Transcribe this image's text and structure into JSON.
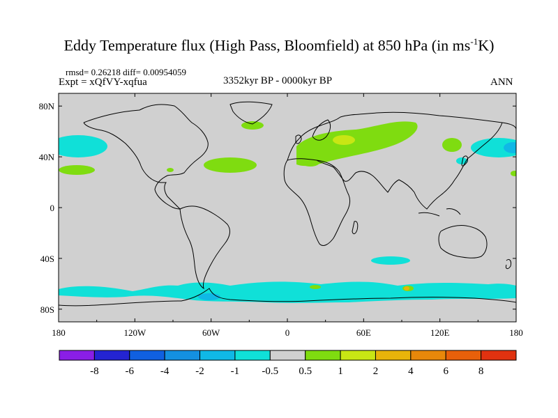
{
  "title": {
    "main": "Eddy Temperature flux (High Pass, Bloomfield) at 850 hPa (in ms",
    "sup": "-1",
    "tail": "K)"
  },
  "stats": "rmsd= 0.26218 diff= 0.00954059",
  "experiment": "Expt = xQfVY-xqfua",
  "period": "3352kyr BP - 0000kyr BP",
  "season": "ANN",
  "x_ticks": [
    "180",
    "120W",
    "60W",
    "0",
    "60E",
    "120E",
    "180"
  ],
  "y_ticks": [
    "80N",
    "40N",
    "0",
    "40S",
    "80S"
  ],
  "colorbar": {
    "labels": [
      "-8",
      "-6",
      "-4",
      "-2",
      "-1",
      "-0.5",
      "0.5",
      "1",
      "2",
      "4",
      "6",
      "8"
    ],
    "colors": [
      "#8a1ee6",
      "#2424d2",
      "#1060e0",
      "#1490e0",
      "#10b8e6",
      "#10e0d8",
      "#d0d0d0",
      "#7fdc10",
      "#c8e614",
      "#e8b40a",
      "#e8880a",
      "#e8600a",
      "#e03210"
    ]
  },
  "colors": {
    "ocean_background": "#d0d0d0",
    "neg_weak": "#10e0d8",
    "neg_mid": "#10b8e6",
    "pos_weak": "#7fdc10",
    "pos_mid": "#c8e614",
    "pos_strong": "#e8b40a"
  }
}
